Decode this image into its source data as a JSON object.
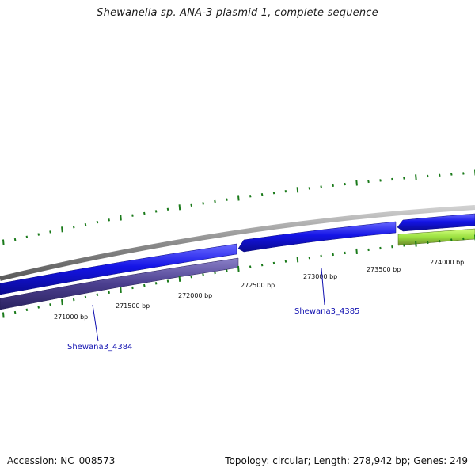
{
  "header": {
    "title": "Shewanella sp. ANA-3 plasmid 1, complete sequence"
  },
  "footer": {
    "accession": "Accession: NC_008573",
    "summary": "Topology: circular; Length: 278,942 bp; Genes: 249"
  },
  "ruler": {
    "ticks": [
      {
        "label": "271000 bp"
      },
      {
        "label": "271500 bp"
      },
      {
        "label": "272000 bp"
      },
      {
        "label": "272500 bp"
      },
      {
        "label": "273000 bp"
      },
      {
        "label": "273500 bp"
      },
      {
        "label": "274000 bp"
      }
    ],
    "tick_color": "#1a7a1a"
  },
  "genes": [
    {
      "name": "Shewana3_4384"
    },
    {
      "name": "Shewana3_4385"
    }
  ],
  "colors": {
    "backbone": "#8c8c8c",
    "cds_forward": "#1414e6",
    "cds_reverse": "#4b3f8f",
    "feature_light": "#9be040",
    "feature_dark": "#6b8a2a",
    "gene_label": "#1010b0"
  }
}
